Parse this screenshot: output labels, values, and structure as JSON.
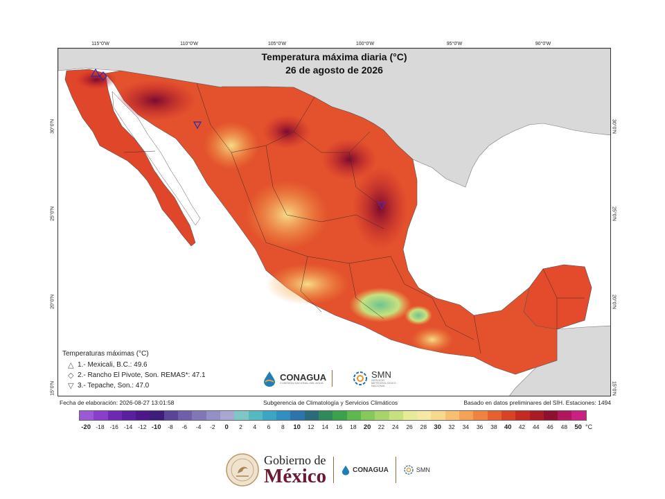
{
  "map": {
    "title": "Temperatura máxima diaria (°C)",
    "date": "26 de agosto de 2026",
    "longitude_labels": [
      "115°0'W",
      "110°0'W",
      "105°0'W",
      "100°0'W",
      "95°0'W",
      "90°0'W"
    ],
    "latitude_labels": [
      "30°0'N",
      "25°0'N",
      "20°0'N",
      "15°0'N"
    ],
    "colors": {
      "land_outside": "#d9d9d9",
      "water": "#ffffff",
      "hot_dark": "#8b0a2a",
      "hot": "#c9202a",
      "warm": "#e8532b",
      "mild": "#f39a3c",
      "cool": "#f7cf7a",
      "green": "#8fd18f"
    }
  },
  "stations_legend": {
    "title": "Temperaturas máximas (°C)",
    "items": [
      {
        "symbol": "△",
        "text": "1.- Mexicali, B.C.: 49.6"
      },
      {
        "symbol": "◇",
        "text": "2.- Rancho El Pivote, Son. REMAS*: 47.1"
      },
      {
        "symbol": "▽",
        "text": "3.- Tepache, Son.: 47.0"
      }
    ]
  },
  "logos": {
    "conagua": "CONAGUA",
    "conagua_sub": "COMISIÓN NACIONAL DEL AGUA",
    "smn": "SMN",
    "smn_sub": "SERVICIO METEOROLÓGICO NACIONAL"
  },
  "footer": {
    "fecha": "Fecha de elaboración: 2026-08-27 13:01:58",
    "subgerencia": "Subgerencia de Climatología y Servicios Climáticos",
    "basado": "Basado en datos preliminares del SIH. Estaciones: 1494"
  },
  "colorbar": {
    "unit": "°C",
    "labels": [
      "-20",
      "-18",
      "-16",
      "-14",
      "-12",
      "-10",
      "-8",
      "-6",
      "-4",
      "-2",
      "0",
      "2",
      "4",
      "6",
      "8",
      "10",
      "12",
      "14",
      "16",
      "18",
      "20",
      "22",
      "24",
      "26",
      "28",
      "30",
      "32",
      "34",
      "36",
      "38",
      "40",
      "42",
      "44",
      "46",
      "48",
      "50"
    ],
    "bold_labels": [
      "-20",
      "-10",
      "0",
      "10",
      "20",
      "30",
      "40",
      "50"
    ],
    "colors": [
      "#9b59d6",
      "#8a3fc9",
      "#6d2ab0",
      "#5a1f9c",
      "#4b1789",
      "#3d1c7a",
      "#5b4596",
      "#6e5fa8",
      "#8177b6",
      "#948fc4",
      "#a7a7d2",
      "#7fc7c7",
      "#55b9c0",
      "#3aa6c3",
      "#2f8fbf",
      "#2c74a9",
      "#2a6a7a",
      "#2e8a5a",
      "#3aa24a",
      "#5db84f",
      "#86c95a",
      "#a7d56a",
      "#c7e17e",
      "#e5eb96",
      "#f5e9a3",
      "#f7d98b",
      "#f6c070",
      "#f4a356",
      "#ef8441",
      "#e7612f",
      "#d94224",
      "#c52a22",
      "#a91b26",
      "#8e1030",
      "#b0155e",
      "#cc1f82"
    ]
  },
  "branding": {
    "gob_line1": "Gobierno de",
    "gob_line2": "México",
    "conagua": "CONAGUA",
    "smn": "SMN"
  }
}
